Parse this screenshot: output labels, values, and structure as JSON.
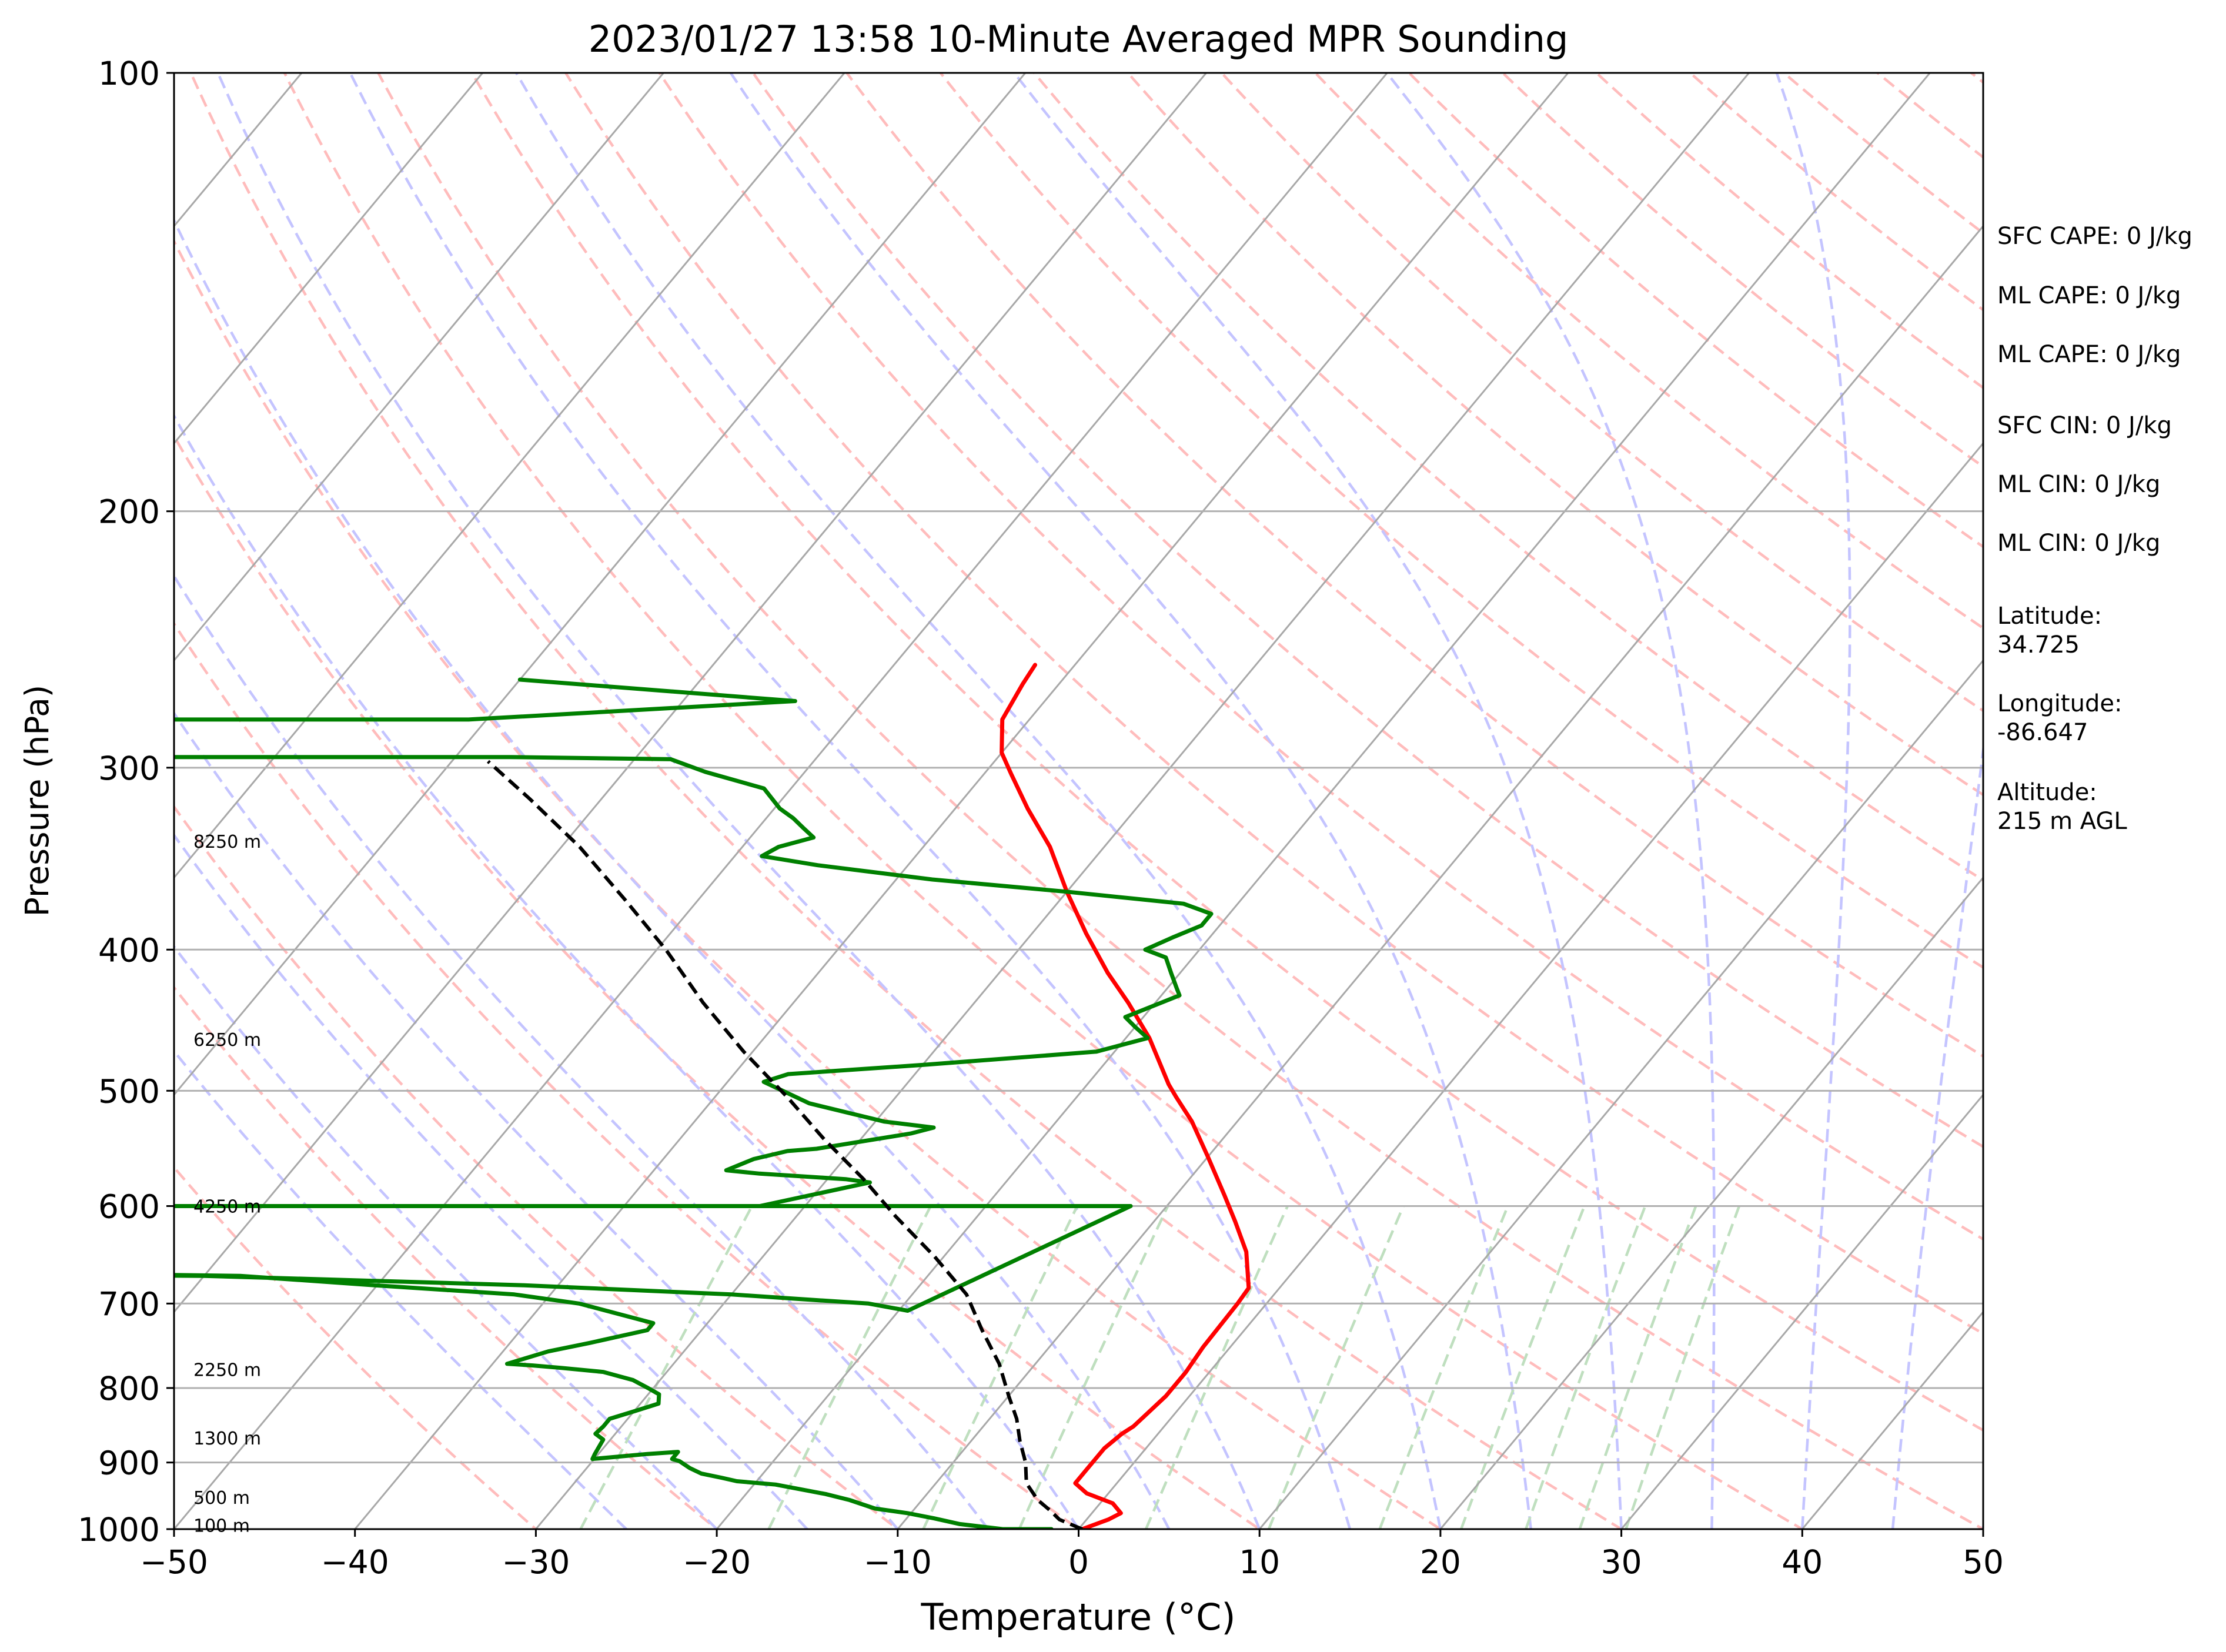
{
  "chart_data": {
    "type": "line",
    "title": "2023/01/27 13:58 10-Minute Averaged MPR Sounding",
    "xlabel": "Temperature (°C)",
    "ylabel": "Pressure (hPa)",
    "xlim": [
      -50,
      50
    ],
    "ylim": [
      1000,
      100
    ],
    "y_scale": "log",
    "skew": "skew-T",
    "x_ticks": [
      "−50",
      "−40",
      "−30",
      "−20",
      "−10",
      "0",
      "10",
      "20",
      "30",
      "40",
      "50"
    ],
    "x_tick_values": [
      -50,
      -40,
      -30,
      -20,
      -10,
      0,
      10,
      20,
      30,
      40,
      50
    ],
    "y_ticks": [
      "1000",
      "900",
      "800",
      "700",
      "600",
      "500",
      "400",
      "300",
      "200",
      "100"
    ],
    "y_tick_values": [
      1000,
      900,
      800,
      700,
      600,
      500,
      400,
      300,
      200,
      100
    ],
    "grid": true,
    "background_lines": {
      "isotherms_color": "#a8a8a8",
      "dry_adiabats_color": "#ffbcbc",
      "moist_adiabats_color": "#c4c4ff",
      "mixing_ratio_color": "#bfdfbf"
    },
    "series": [
      {
        "role": "temperature",
        "color": "#ff0000",
        "points": [
          [
            0.2,
            1000
          ],
          [
            1.2,
            985
          ],
          [
            1.6,
            975
          ],
          [
            0.7,
            960
          ],
          [
            -1.2,
            945
          ],
          [
            -2.3,
            930
          ],
          [
            -2.3,
            910
          ],
          [
            -2.3,
            880
          ],
          [
            -2.0,
            860
          ],
          [
            -1.7,
            850
          ],
          [
            -1.5,
            830
          ],
          [
            -1.3,
            810
          ],
          [
            -1.3,
            780
          ],
          [
            -1.5,
            750
          ],
          [
            -1.6,
            700
          ],
          [
            -1.7,
            683
          ],
          [
            -3.5,
            645
          ],
          [
            -5.5,
            615
          ],
          [
            -7.3,
            590
          ],
          [
            -10.0,
            555
          ],
          [
            -12.5,
            525
          ],
          [
            -14.5,
            505
          ],
          [
            -15.5,
            495
          ],
          [
            -18.7,
            460
          ],
          [
            -21.5,
            435
          ],
          [
            -24.0,
            415
          ],
          [
            -27.0,
            390
          ],
          [
            -30.0,
            365
          ],
          [
            -33.0,
            340
          ],
          [
            -36.0,
            320
          ],
          [
            -38.5,
            303
          ],
          [
            -40.0,
            293
          ],
          [
            -41.5,
            278
          ],
          [
            -42.0,
            263
          ],
          [
            -42.2,
            255
          ]
        ]
      },
      {
        "role": "dewpoint",
        "color": "#008000",
        "points": [
          [
            -1.5,
            1000
          ],
          [
            -4.2,
            1000
          ],
          [
            -6.8,
            992
          ],
          [
            -8.5,
            983
          ],
          [
            -10.2,
            975
          ],
          [
            -12.2,
            968
          ],
          [
            -14.0,
            955
          ],
          [
            -15.6,
            946
          ],
          [
            -18.8,
            932
          ],
          [
            -21.1,
            927
          ],
          [
            -22.1,
            922
          ],
          [
            -23.4,
            916
          ],
          [
            -24.3,
            908
          ],
          [
            -25.2,
            898
          ],
          [
            -25.7,
            895
          ],
          [
            -25.7,
            885
          ],
          [
            -27.3,
            888
          ],
          [
            -30.1,
            895
          ],
          [
            -30.2,
            888
          ],
          [
            -30.3,
            878
          ],
          [
            -30.4,
            868
          ],
          [
            -31.1,
            860
          ],
          [
            -31.0,
            850
          ],
          [
            -31.0,
            840
          ],
          [
            -30.0,
            830
          ],
          [
            -29.0,
            820
          ],
          [
            -29.4,
            808
          ],
          [
            -30.3,
            800
          ],
          [
            -31.5,
            790
          ],
          [
            -33.5,
            780
          ],
          [
            -36.0,
            775
          ],
          [
            -37.7,
            772
          ],
          [
            -39.2,
            770
          ],
          [
            -37.5,
            755
          ],
          [
            -35.6,
            745
          ],
          [
            -33.0,
            730
          ],
          [
            -33.0,
            722
          ],
          [
            -38.0,
            700
          ],
          [
            -42.0,
            690
          ],
          [
            -50.2,
            680
          ],
          [
            -58.0,
            670
          ],
          [
            -70.0,
            667
          ],
          [
            -78.0,
            667
          ],
          [
            -82.0,
            667
          ],
          [
            -60.0,
            670
          ],
          [
            -42.0,
            680
          ],
          [
            -30.0,
            690
          ],
          [
            -26.0,
            695
          ],
          [
            -22.0,
            700
          ],
          [
            -19.5,
            708
          ],
          [
            -12.0,
            600
          ],
          [
            -38.3,
            600
          ],
          [
            -55.0,
            600
          ],
          [
            -74.0,
            600
          ],
          [
            -85.0,
            600
          ],
          [
            -59.0,
            600
          ],
          [
            -32.5,
            600
          ],
          [
            -27.5,
            578
          ],
          [
            -29.0,
            575
          ],
          [
            -34.0,
            570
          ],
          [
            -36.0,
            567
          ],
          [
            -35.0,
            557
          ],
          [
            -33.5,
            550
          ],
          [
            -32.0,
            548
          ],
          [
            -27.5,
            535
          ],
          [
            -26.5,
            530
          ],
          [
            -29.5,
            525
          ],
          [
            -34.5,
            510
          ],
          [
            -38.0,
            493
          ],
          [
            -37.0,
            487
          ],
          [
            -30.0,
            480
          ],
          [
            -21.0,
            470
          ],
          [
            -18.8,
            460
          ],
          [
            -20.0,
            452
          ],
          [
            -21.0,
            445
          ],
          [
            -19.0,
            430
          ],
          [
            -19.5,
            425
          ],
          [
            -20.5,
            415
          ],
          [
            -21.5,
            405
          ],
          [
            -23.0,
            400
          ],
          [
            -22.0,
            392
          ],
          [
            -21.0,
            385
          ],
          [
            -21.0,
            378
          ],
          [
            -23.0,
            372
          ],
          [
            -30.0,
            365
          ],
          [
            -38.0,
            358
          ],
          [
            -45.0,
            350
          ],
          [
            -48.5,
            345
          ],
          [
            -48.0,
            340
          ],
          [
            -46.5,
            335
          ],
          [
            -47.5,
            330
          ],
          [
            -48.5,
            325
          ],
          [
            -49.7,
            320
          ],
          [
            -51.5,
            310
          ],
          [
            -55.5,
            302
          ],
          [
            -58.0,
            296
          ],
          [
            -67.0,
            295
          ],
          [
            -86.0,
            295
          ],
          [
            -91.0,
            295
          ],
          [
            -90.0,
            278
          ],
          [
            -80.0,
            278
          ],
          [
            -71.0,
            278
          ],
          [
            -53.8,
            270
          ],
          [
            -70.0,
            261
          ]
        ]
      },
      {
        "role": "parcel",
        "color": "#000000",
        "dashed": true,
        "points": [
          [
            0.2,
            1000
          ],
          [
            -1.5,
            985
          ],
          [
            -2.5,
            970
          ],
          [
            -3.6,
            955
          ],
          [
            -5.0,
            930
          ],
          [
            -6.0,
            900
          ],
          [
            -7.3,
            870
          ],
          [
            -8.5,
            840
          ],
          [
            -10.0,
            810
          ],
          [
            -12.0,
            770
          ],
          [
            -14.5,
            730
          ],
          [
            -17.0,
            690
          ],
          [
            -20.5,
            650
          ],
          [
            -24.5,
            610
          ],
          [
            -28.0,
            575
          ],
          [
            -32.0,
            540
          ],
          [
            -36.0,
            505
          ],
          [
            -40.5,
            470
          ],
          [
            -45.0,
            435
          ],
          [
            -49.5,
            400
          ],
          [
            -54.0,
            370
          ],
          [
            -59.0,
            340
          ],
          [
            -64.0,
            315
          ],
          [
            -68.0,
            297
          ]
        ]
      }
    ],
    "height_annotations": [
      "100 m",
      "500 m",
      "1300 m",
      "2250 m",
      "4250 m",
      "6250 m",
      "8250 m"
    ],
    "height_annotation_pressures": [
      994,
      951,
      866,
      777,
      600,
      461,
      337
    ]
  },
  "info_panel": {
    "sfc_cape": "SFC CAPE: 0 J/kg",
    "ml_cape_1": "ML CAPE: 0 J/kg",
    "ml_cape_2": "ML CAPE: 0 J/kg",
    "sfc_cin": "SFC CIN: 0 J/kg",
    "ml_cin_1": "ML CIN: 0 J/kg",
    "ml_cin_2": "ML CIN: 0 J/kg",
    "latitude_label": "Latitude:",
    "latitude_value": "34.725",
    "longitude_label": "Longitude:",
    "longitude_value": "-86.647",
    "altitude_label": "Altitude:",
    "altitude_value": "215 m AGL"
  }
}
